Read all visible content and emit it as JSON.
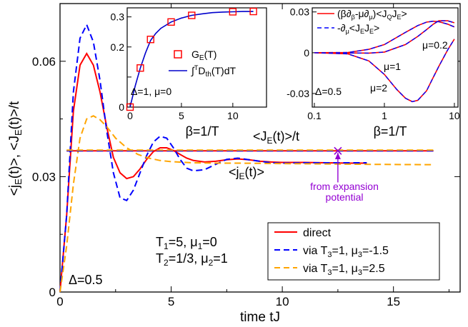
{
  "chart_data": [
    {
      "type": "line",
      "role": "main",
      "xlabel": "time tJ",
      "ylabel": "<j_E(t)>, <J_E(t)>/t",
      "xlim": [
        0,
        18
      ],
      "ylim": [
        0,
        0.075
      ],
      "xticks": [
        0,
        5,
        10,
        15
      ],
      "yticks": [
        0,
        0.03,
        0.06
      ],
      "xtick_labels": [
        "0",
        "5",
        "10",
        "15"
      ],
      "ytick_labels": [
        "0",
        "0.03",
        "0.06"
      ],
      "texts": {
        "params_line1": "T₁=5, μ₁=0",
        "params_line2": "T₂=1/3, μ₂=1",
        "delta": "Δ=0.5",
        "JE_over_t": "<J_E(t)>/t",
        "jE": "<j_E(t)>",
        "from_exp_1": "from expansion",
        "from_exp_2": "potential"
      },
      "legend": {
        "placement": "lower-right",
        "entries": [
          "direct",
          "via T₃=1, μ₃=-1.5",
          "via T₃=1, μ₃=2.5"
        ]
      },
      "series": [
        {
          "name": "direct",
          "color": "#ff0000",
          "dash": "solid",
          "x": [
            0,
            0.3,
            0.6,
            0.9,
            1.2,
            1.5,
            1.8,
            2.1,
            2.4,
            2.7,
            3.0,
            3.3,
            3.6,
            3.9,
            4.2,
            4.5,
            4.8,
            5.1,
            5.4,
            5.7,
            6.0,
            6.5,
            7.0,
            7.5,
            8.0,
            8.5,
            9.0,
            9.5,
            10.0,
            11.0,
            12.0,
            13.0,
            13.8
          ],
          "y": [
            0,
            0.02,
            0.047,
            0.059,
            0.062,
            0.059,
            0.052,
            0.043,
            0.035,
            0.031,
            0.0295,
            0.03,
            0.032,
            0.0345,
            0.0365,
            0.0375,
            0.0375,
            0.0368,
            0.0358,
            0.0348,
            0.0342,
            0.0338,
            0.034,
            0.0344,
            0.0346,
            0.0344,
            0.034,
            0.0338,
            0.0337,
            0.0337,
            0.0336,
            0.0335,
            0.0335
          ]
        },
        {
          "name": "via T₃=1, μ₃=-1.5",
          "color": "#0000ff",
          "dash": "dashed",
          "x": [
            0,
            0.3,
            0.6,
            0.9,
            1.2,
            1.5,
            1.8,
            2.1,
            2.4,
            2.7,
            3.0,
            3.3,
            3.6,
            3.9,
            4.2,
            4.5,
            4.8,
            5.1,
            5.4,
            5.7,
            6.0,
            6.5,
            7.0,
            7.5,
            8.0,
            8.5,
            9.0,
            9.5,
            10.0,
            11.0,
            12.0,
            13.0,
            13.8
          ],
          "y": [
            0,
            0.02,
            0.052,
            0.066,
            0.0695,
            0.065,
            0.055,
            0.042,
            0.031,
            0.0245,
            0.0238,
            0.0265,
            0.031,
            0.0355,
            0.039,
            0.0405,
            0.04,
            0.0375,
            0.0345,
            0.0322,
            0.0315,
            0.0318,
            0.0332,
            0.0345,
            0.0348,
            0.0344,
            0.034,
            0.0336,
            0.0335,
            0.0336,
            0.0336,
            0.0336,
            0.0336
          ]
        },
        {
          "name": "via T₃=1, μ₃=2.5",
          "color": "#ffa500",
          "dash": "dashed",
          "x": [
            0,
            0.3,
            0.6,
            0.9,
            1.2,
            1.5,
            1.8,
            2.1,
            2.5,
            3.0,
            3.5,
            4.0,
            4.5,
            5.0,
            6.0,
            7.0,
            8.0,
            10.0,
            12.0,
            14.0,
            16.8
          ],
          "y": [
            0,
            0.012,
            0.028,
            0.04,
            0.045,
            0.0458,
            0.0448,
            0.043,
            0.04,
            0.0375,
            0.0358,
            0.0348,
            0.0342,
            0.0339,
            0.0336,
            0.0335,
            0.0335,
            0.0334,
            0.0333,
            0.0332,
            0.0331
          ]
        },
        {
          "name": "<J_E(t)>/t direct",
          "color": "#ff0000",
          "dash": "solid",
          "x": [
            0.3,
            16.8
          ],
          "y": [
            0.0367,
            0.0367
          ]
        },
        {
          "name": "<J_E(t)>/t via μ₃=-1.5",
          "color": "#0000ff",
          "dash": "dashed",
          "x": [
            0.3,
            16.8
          ],
          "y": [
            0.0367,
            0.0367
          ]
        },
        {
          "name": "<J_E(t)>/t via μ₃=2.5",
          "color": "#ffa500",
          "dash": "dashed",
          "x": [
            0.3,
            16.8
          ],
          "y": [
            0.0369,
            0.0369
          ]
        }
      ],
      "marker": {
        "x": 12.5,
        "y": 0.0367,
        "symbol": "x",
        "color": "#9400d3"
      },
      "arrow": {
        "from": [
          12.5,
          0.0285
        ],
        "to": [
          12.5,
          0.0362
        ],
        "color": "#9400d3"
      }
    },
    {
      "type": "line",
      "role": "inset-left",
      "xlabel": "β=1/T",
      "xlim": [
        0,
        13
      ],
      "ylim": [
        0,
        0.33
      ],
      "xticks": [
        0,
        5,
        10
      ],
      "yticks": [
        0,
        0.1,
        0.2,
        0.3
      ],
      "xtick_labels": [
        "0",
        "5",
        "10"
      ],
      "ytick_labels": [
        "0",
        "",
        "0.2",
        "0.3"
      ],
      "legend_entries": [
        "G_E(T)",
        "∫^T D_th(T)dT"
      ],
      "annotation": "Δ=1, μ=0",
      "series": [
        {
          "name": "G_E(T)",
          "color": "#ff0000",
          "marker": "square",
          "x": [
            0,
            1,
            2,
            4,
            6,
            10,
            12
          ],
          "y": [
            0,
            0.13,
            0.225,
            0.283,
            0.305,
            0.317,
            0.318
          ]
        },
        {
          "name": "∫^T D_th(T)dT",
          "color": "#0000cc",
          "marker": "none",
          "x": [
            0,
            0.5,
            1,
            1.5,
            2,
            2.5,
            3,
            4,
            5,
            6,
            7,
            8,
            9,
            10,
            11,
            12
          ],
          "y": [
            0,
            0.07,
            0.13,
            0.18,
            0.222,
            0.245,
            0.262,
            0.283,
            0.296,
            0.305,
            0.31,
            0.314,
            0.316,
            0.317,
            0.318,
            0.318
          ]
        }
      ]
    },
    {
      "type": "line",
      "role": "inset-right",
      "xlabel": "β=1/T",
      "xscale": "log",
      "xlim": [
        0.1,
        11
      ],
      "ylim": [
        -0.04,
        0.033
      ],
      "xticks": [
        0.1,
        1,
        10
      ],
      "yticks": [
        -0.03,
        0,
        0.03
      ],
      "xtick_labels": [
        "0.1",
        "1",
        "10"
      ],
      "ytick_labels": [
        "-0.03",
        "0",
        "0.03"
      ],
      "legend_entries": [
        "(β∂β-μ∂μ)<J_QJ_E>",
        "-∂μ<J_EJ_E>"
      ],
      "annotations": [
        "μ=0.2",
        "μ=1",
        "μ=2",
        "Δ=0.5"
      ],
      "series": [
        {
          "name": "μ=0.2",
          "x": [
            0.1,
            0.3,
            0.6,
            1,
            2,
            3,
            4,
            5,
            6,
            8,
            10
          ],
          "y": [
            0,
            0.0002,
            0.0025,
            0.006,
            0.015,
            0.02,
            0.0225,
            0.0232,
            0.0228,
            0.021,
            0.019
          ]
        },
        {
          "name": "μ=1",
          "x": [
            0.1,
            0.3,
            0.6,
            1,
            2,
            3,
            4,
            5,
            6,
            8,
            10
          ],
          "y": [
            0,
            -0.0002,
            -0.0003,
            0.0005,
            0.006,
            0.012,
            0.017,
            0.021,
            0.0235,
            0.0235,
            0.022
          ]
        },
        {
          "name": "μ=2",
          "x": [
            0.1,
            0.3,
            0.6,
            1,
            1.5,
            2,
            2.5,
            3,
            4,
            5,
            6,
            8,
            10
          ],
          "y": [
            0,
            -0.0008,
            -0.006,
            -0.016,
            -0.027,
            -0.0335,
            -0.036,
            -0.035,
            -0.028,
            -0.018,
            -0.01,
            0.002,
            0.01
          ]
        }
      ]
    }
  ]
}
